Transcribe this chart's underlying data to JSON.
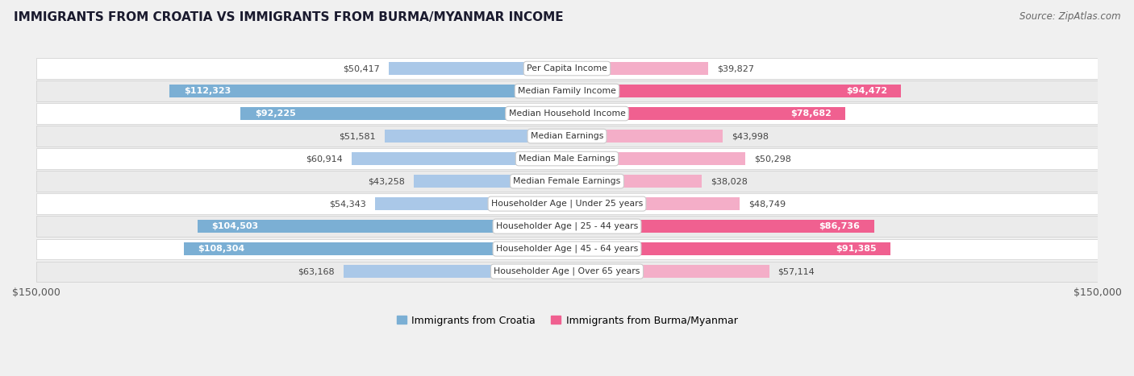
{
  "title": "IMMIGRANTS FROM CROATIA VS IMMIGRANTS FROM BURMA/MYANMAR INCOME",
  "source": "Source: ZipAtlas.com",
  "categories": [
    "Per Capita Income",
    "Median Family Income",
    "Median Household Income",
    "Median Earnings",
    "Median Male Earnings",
    "Median Female Earnings",
    "Householder Age | Under 25 years",
    "Householder Age | 25 - 44 years",
    "Householder Age | 45 - 64 years",
    "Householder Age | Over 65 years"
  ],
  "croatia_values": [
    50417,
    112323,
    92225,
    51581,
    60914,
    43258,
    54343,
    104503,
    108304,
    63168
  ],
  "burma_values": [
    39827,
    94472,
    78682,
    43998,
    50298,
    38028,
    48749,
    86736,
    91385,
    57114
  ],
  "croatia_labels": [
    "$50,417",
    "$112,323",
    "$92,225",
    "$51,581",
    "$60,914",
    "$43,258",
    "$54,343",
    "$104,503",
    "$108,304",
    "$63,168"
  ],
  "burma_labels": [
    "$39,827",
    "$94,472",
    "$78,682",
    "$43,998",
    "$50,298",
    "$38,028",
    "$48,749",
    "$86,736",
    "$91,385",
    "$57,114"
  ],
  "croatia_color_large": "#7bafd4",
  "croatia_color_small": "#aac8e8",
  "burma_color_large": "#f06090",
  "burma_color_small": "#f4aec8",
  "max_val": 150000,
  "legend_croatia": "Immigrants from Croatia",
  "legend_burma": "Immigrants from Burma/Myanmar",
  "figure_bg": "#f0f0f0",
  "row_bg_even": "#ffffff",
  "row_bg_odd": "#ebebeb",
  "label_inside_threshold": 75000,
  "x_tick_labels": [
    "$150,000",
    "$150,000"
  ]
}
